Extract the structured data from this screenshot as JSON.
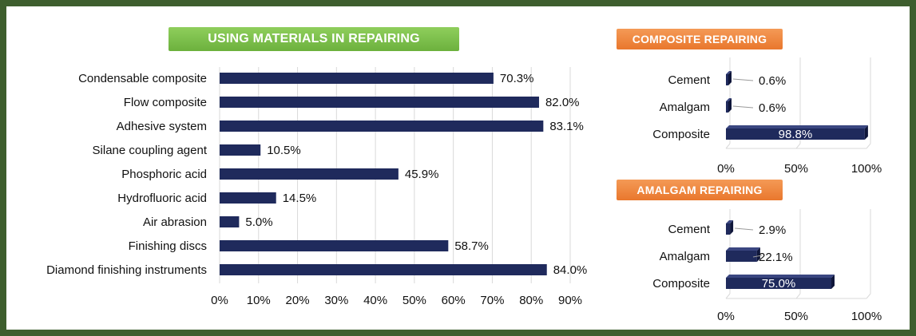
{
  "colors": {
    "frame": "#3e5e2e",
    "bar": "#1f2a5c",
    "banner_green": "#78bb46",
    "banner_orange": "#ef8a3d"
  },
  "chart_data": [
    {
      "type": "bar",
      "orientation": "horizontal",
      "title": "USING MATERIALS IN REPAIRING",
      "categories": [
        "Condensable composite",
        "Flow composite",
        "Adhesive system",
        "Silane coupling agent",
        "Phosphoric acid",
        "Hydrofluoric acid",
        "Air abrasion",
        "Finishing discs",
        "Diamond finishing instruments"
      ],
      "values": [
        70.3,
        82.0,
        83.1,
        10.5,
        45.9,
        14.5,
        5.0,
        58.7,
        84.0
      ],
      "labels": [
        "70.3%",
        "82.0%",
        "83.1%",
        "10.5%",
        "45.9%",
        "14.5%",
        "5.0%",
        "58.7%",
        "84.0%"
      ],
      "xlim": [
        0,
        90
      ],
      "ticks": [
        "0%",
        "10%",
        "20%",
        "30%",
        "40%",
        "50%",
        "60%",
        "70%",
        "80%",
        "90%"
      ],
      "grid": true
    },
    {
      "type": "bar",
      "orientation": "horizontal",
      "title": "COMPOSITE REPAIRING",
      "categories": [
        "Cement",
        "Amalgam",
        "Composite"
      ],
      "values": [
        0.6,
        0.6,
        98.8
      ],
      "labels": [
        "0.6%",
        "0.6%",
        "98.8%"
      ],
      "xlim": [
        0,
        100
      ],
      "ticks": [
        "0%",
        "50%",
        "100%"
      ],
      "grid": true
    },
    {
      "type": "bar",
      "orientation": "horizontal",
      "title": "AMALGAM REPAIRING",
      "categories": [
        "Cement",
        "Amalgam",
        "Composite"
      ],
      "values": [
        2.9,
        22.1,
        75.0
      ],
      "labels": [
        "2.9%",
        "22.1%",
        "75.0%"
      ],
      "xlim": [
        0,
        100
      ],
      "ticks": [
        "0%",
        "50%",
        "100%"
      ],
      "grid": true
    }
  ]
}
